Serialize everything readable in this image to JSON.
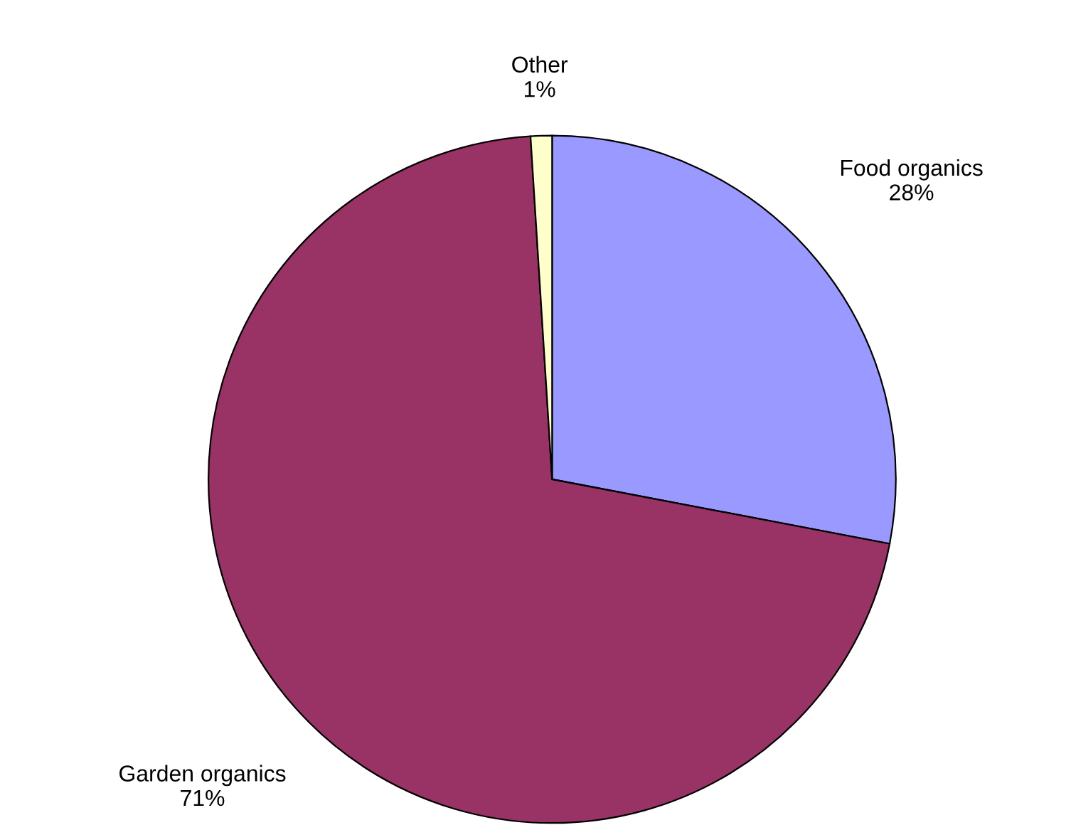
{
  "chart_data": {
    "type": "pie",
    "categories": [
      "Food organics",
      "Garden organics",
      "Other"
    ],
    "values": [
      28,
      71,
      1
    ],
    "value_labels": [
      "28%",
      "71%",
      "1%"
    ],
    "colors": [
      "#9999ff",
      "#993366",
      "#ffffcc"
    ],
    "legend": false
  }
}
